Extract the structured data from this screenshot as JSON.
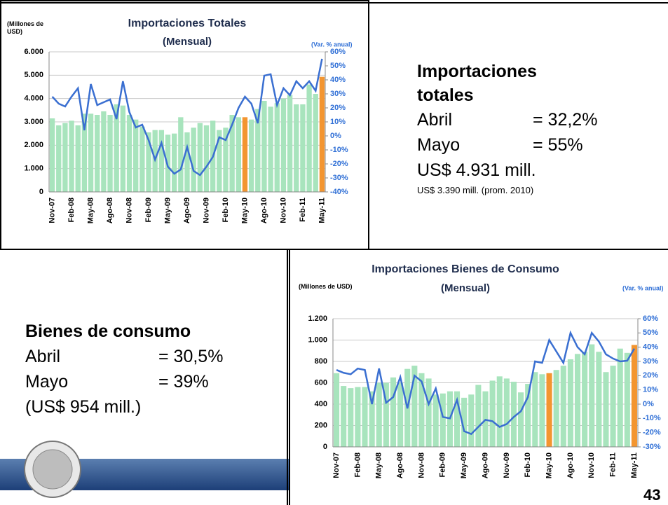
{
  "slide": {
    "top_right": {
      "heading": "Importaciones totales",
      "items": [
        {
          "label": "Abril",
          "value": "= 32,2%"
        },
        {
          "label": "Mayo",
          "value": "= 55%"
        }
      ],
      "amount": "US$ 4.931 mill.",
      "note": "US$ 3.390 mill. (prom. 2010)"
    },
    "bottom_left": {
      "heading": "Bienes de consumo",
      "items": [
        {
          "label": "Abril",
          "value": "= 30,5%"
        },
        {
          "label": "Mayo",
          "value": "= 39%"
        }
      ],
      "amount": "(US$ 954 mill.)"
    },
    "page_number": "43"
  },
  "chart_data": [
    {
      "type": "combo",
      "title": "Importaciones Totales",
      "subtitle": "(Mensual)",
      "y_label": "(Millones de USD)",
      "y2_label": "(Var. % anual)",
      "categories": [
        "Nov-07",
        null,
        null,
        "Feb-08",
        null,
        null,
        "May-08",
        null,
        null,
        "Ago-08",
        null,
        null,
        "Nov-08",
        null,
        null,
        "Feb-09",
        null,
        null,
        "May-09",
        null,
        null,
        "Ago-09",
        null,
        null,
        "Nov-09",
        null,
        null,
        "Feb-10",
        null,
        null,
        "May-10",
        null,
        null,
        "Ago-10",
        null,
        null,
        "Nov-10",
        null,
        null,
        "Feb-11",
        null,
        null,
        "May-11"
      ],
      "series": [
        {
          "type": "bar",
          "values": [
            3150,
            2850,
            2950,
            3050,
            2850,
            3350,
            3350,
            3300,
            3450,
            3300,
            3750,
            3700,
            3300,
            3100,
            2800,
            2550,
            2650,
            2650,
            2450,
            2500,
            3200,
            2550,
            2750,
            2950,
            2850,
            3050,
            2650,
            2750,
            3300,
            3200,
            3200,
            3100,
            3550,
            3900,
            3650,
            3800,
            4000,
            4150,
            3750,
            3750,
            4600,
            4200,
            4931
          ],
          "colors": [
            "#a8e4bd",
            "#a8e4bd",
            "#a8e4bd",
            "#a8e4bd",
            "#a8e4bd",
            "#a8e4bd",
            "#a8e4bd",
            "#a8e4bd",
            "#a8e4bd",
            "#a8e4bd",
            "#a8e4bd",
            "#a8e4bd",
            "#a8e4bd",
            "#a8e4bd",
            "#a8e4bd",
            "#a8e4bd",
            "#a8e4bd",
            "#a8e4bd",
            "#a8e4bd",
            "#a8e4bd",
            "#a8e4bd",
            "#a8e4bd",
            "#a8e4bd",
            "#a8e4bd",
            "#a8e4bd",
            "#a8e4bd",
            "#a8e4bd",
            "#a8e4bd",
            "#a8e4bd",
            "#a8e4bd",
            "#f39530",
            "#a8e4bd",
            "#a8e4bd",
            "#a8e4bd",
            "#a8e4bd",
            "#a8e4bd",
            "#a8e4bd",
            "#a8e4bd",
            "#a8e4bd",
            "#a8e4bd",
            "#a8e4bd",
            "#a8e4bd",
            "#f39530"
          ]
        },
        {
          "type": "line",
          "axis": "y2",
          "color": "#3a6fd1",
          "values": [
            28,
            23,
            21,
            28,
            34,
            4,
            37,
            22,
            24,
            26,
            12,
            39,
            17,
            6,
            8,
            -3,
            -17,
            -5,
            -22,
            -27,
            -24,
            -8,
            -25,
            -28,
            -22,
            -15,
            -1,
            -3,
            8,
            20,
            28,
            23,
            9,
            43,
            44,
            22,
            34,
            29,
            39,
            34,
            39,
            32.2,
            55
          ]
        }
      ],
      "ylim": [
        0,
        6000
      ],
      "yticks": [
        0,
        {
          "value": 1000,
          "label": "1.000"
        },
        {
          "value": 2000,
          "label": "2.000"
        },
        {
          "value": 3000,
          "label": "3.000"
        },
        {
          "value": 4000,
          "label": "4.000"
        },
        {
          "value": 5000,
          "label": "5.000"
        },
        {
          "value": 6000,
          "label": "6.000"
        }
      ],
      "y2lim": [
        -40,
        60
      ],
      "y2ticks": [
        {
          "value": -40,
          "label": "-40%"
        },
        {
          "value": -30,
          "label": "-30%"
        },
        {
          "value": -20,
          "label": "-20%"
        },
        {
          "value": -10,
          "label": "-10%"
        },
        {
          "value": 0,
          "label": "0%"
        },
        {
          "value": 10,
          "label": "10%"
        },
        {
          "value": 20,
          "label": "20%"
        },
        {
          "value": 30,
          "label": "30%"
        },
        {
          "value": 40,
          "label": "40%"
        },
        {
          "value": 50,
          "label": "50%"
        },
        {
          "value": 60,
          "label": "60%"
        }
      ],
      "grid": true
    },
    {
      "type": "combo",
      "title": "Importaciones Bienes de Consumo",
      "subtitle": "(Mensual)",
      "y_label": "(Millones de USD)",
      "y2_label": "(Var. % anual)",
      "categories": [
        "Nov-07",
        null,
        null,
        "Feb-08",
        null,
        null,
        "May-08",
        null,
        null,
        "Ago-08",
        null,
        null,
        "Nov-08",
        null,
        null,
        "Feb-09",
        null,
        null,
        "May-09",
        null,
        null,
        "Ago-09",
        null,
        null,
        "Nov-09",
        null,
        null,
        "Feb-10",
        null,
        null,
        "May-10",
        null,
        null,
        "Ago-10",
        null,
        null,
        "Nov-10",
        null,
        null,
        "Feb-11",
        null,
        null,
        "May-11"
      ],
      "series": [
        {
          "type": "bar",
          "values": [
            690,
            570,
            550,
            560,
            560,
            520,
            600,
            600,
            650,
            600,
            730,
            760,
            690,
            640,
            490,
            500,
            520,
            520,
            460,
            490,
            580,
            520,
            620,
            660,
            640,
            610,
            510,
            590,
            700,
            680,
            690,
            720,
            760,
            820,
            870,
            890,
            960,
            890,
            700,
            760,
            920,
            880,
            954
          ],
          "colors": [
            "#a8e4bd",
            "#a8e4bd",
            "#a8e4bd",
            "#a8e4bd",
            "#a8e4bd",
            "#a8e4bd",
            "#a8e4bd",
            "#a8e4bd",
            "#a8e4bd",
            "#a8e4bd",
            "#a8e4bd",
            "#a8e4bd",
            "#a8e4bd",
            "#a8e4bd",
            "#a8e4bd",
            "#a8e4bd",
            "#a8e4bd",
            "#a8e4bd",
            "#a8e4bd",
            "#a8e4bd",
            "#a8e4bd",
            "#a8e4bd",
            "#a8e4bd",
            "#a8e4bd",
            "#a8e4bd",
            "#a8e4bd",
            "#a8e4bd",
            "#a8e4bd",
            "#a8e4bd",
            "#a8e4bd",
            "#f39530",
            "#a8e4bd",
            "#a8e4bd",
            "#a8e4bd",
            "#a8e4bd",
            "#a8e4bd",
            "#a8e4bd",
            "#a8e4bd",
            "#a8e4bd",
            "#a8e4bd",
            "#a8e4bd",
            "#a8e4bd",
            "#f39530"
          ]
        },
        {
          "type": "line",
          "axis": "y2",
          "color": "#3a6fd1",
          "values": [
            24,
            22,
            21,
            25,
            24,
            0,
            25,
            1,
            5,
            19,
            -3,
            20,
            16,
            0,
            11,
            -9,
            -10,
            3,
            -19,
            -21,
            -16,
            -11,
            -12,
            -16,
            -14,
            -9,
            -5,
            5,
            30,
            29,
            45,
            37,
            29,
            50,
            40,
            35,
            50,
            44,
            35,
            32,
            30,
            30.5,
            39
          ]
        }
      ],
      "ylim": [
        0,
        1200
      ],
      "yticks": [
        0,
        200,
        400,
        600,
        800,
        {
          "value": 1000,
          "label": "1.000"
        },
        {
          "value": 1200,
          "label": "1.200"
        }
      ],
      "y2lim": [
        -30,
        60
      ],
      "y2ticks": [
        {
          "value": -30,
          "label": "-30%"
        },
        {
          "value": -20,
          "label": "-20%"
        },
        {
          "value": -10,
          "label": "-10%"
        },
        {
          "value": 0,
          "label": "0%"
        },
        {
          "value": 10,
          "label": "10%"
        },
        {
          "value": 20,
          "label": "20%"
        },
        {
          "value": 30,
          "label": "30%"
        },
        {
          "value": 40,
          "label": "40%"
        },
        {
          "value": 50,
          "label": "50%"
        },
        {
          "value": 60,
          "label": "60%"
        }
      ],
      "grid": true
    }
  ]
}
